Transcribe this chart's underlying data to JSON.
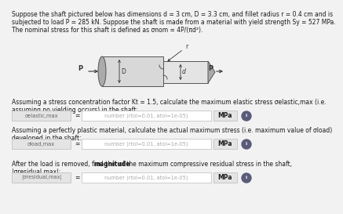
{
  "bg_color": "#f2f2f2",
  "text_color": "#1a1a1a",
  "fs_body": 5.5,
  "fs_label": 4.8,
  "title_lines": [
    "Suppose the shaft pictured below has dimensions d = 3 cm, D = 3.3 cm, and fillet radius r = 0.4 cm and is",
    "subjected to load P = 285 kN. Suppose the shaft is made from a material with yield strength Sy = 527 MPa.",
    "The nominal stress for this shaft is defined as σnom = 4P/(πd²)."
  ],
  "q1_lines": [
    "Assuming a stress concentration factor Kt = 1.5, calculate the maximum elastic stress σelastic,max (i.e.",
    "assuming no yielding occurs) in the shaft:"
  ],
  "q1_label": "σelastic,max",
  "q1_placeholder": "number (rtol=0.01, atol=1e-05)",
  "q1_unit": "MPa",
  "q2_lines": [
    "Assuming a perfectly plastic material, calculate the actual maximum stress (i.e. maximum value of σload)",
    "developed in the shaft:"
  ],
  "q2_label": "σload,max",
  "q2_placeholder": "number (rtol=0.01, atol=1e-05)",
  "q2_unit": "MPa",
  "q3_line1_pre": "After the load is removed, find the ",
  "q3_line1_bold": "magnitude",
  "q3_line1_post": " of the maximum compressive residual stress in the shaft,",
  "q3_line2": "|σresidual,max|:",
  "q3_label": "|σresidual,max|",
  "q3_placeholder": "number (rtol=0.01, atol=1e-05)",
  "q3_unit": "MPa",
  "shaft_bg": "#e8e8e8",
  "shaft_dark": "#aaaaaa",
  "shaft_light": "#d8d8d8"
}
